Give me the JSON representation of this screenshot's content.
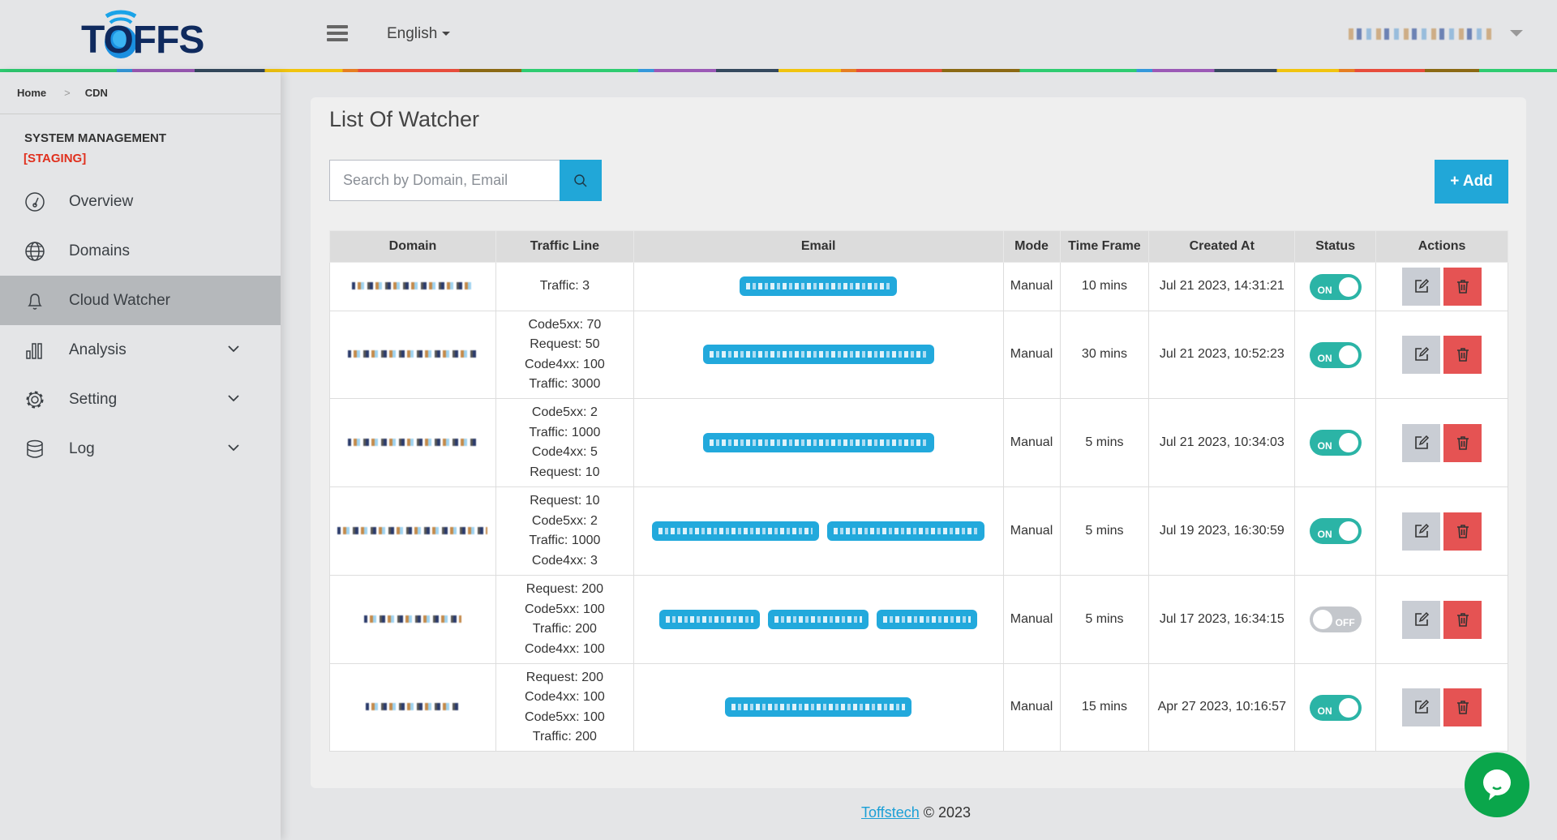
{
  "header": {
    "logo_text": "TOFFS",
    "language": "English"
  },
  "breadcrumb": [
    "Home",
    "CDN"
  ],
  "sidebar": {
    "section": "SYSTEM MANAGEMENT",
    "env": "[STAGING]",
    "items": [
      {
        "label": "Overview",
        "icon": "dashboard-icon"
      },
      {
        "label": "Domains",
        "icon": "globe-icon"
      },
      {
        "label": "Cloud Watcher",
        "icon": "bell-icon",
        "active": true
      },
      {
        "label": "Analysis",
        "icon": "bar-chart-icon",
        "expandable": true
      },
      {
        "label": "Setting",
        "icon": "gear-icon",
        "expandable": true
      },
      {
        "label": "Log",
        "icon": "database-icon",
        "expandable": true
      }
    ]
  },
  "main": {
    "title": "List Of Watcher",
    "search_placeholder": "Search by Domain, Email",
    "add_label": "+ Add",
    "columns": [
      "Domain",
      "Traffic Line",
      "Email",
      "Mode",
      "Time Frame",
      "Created At",
      "Status",
      "Actions"
    ],
    "rows": [
      {
        "traffic": [
          "Traffic: 3"
        ],
        "emails": 1,
        "mode": "Manual",
        "time_frame": "10 mins",
        "created": "Jul 21 2023, 14:31:21",
        "status": "ON"
      },
      {
        "traffic": [
          "Code5xx: 70",
          "Request: 50",
          "Code4xx: 100",
          "Traffic: 3000"
        ],
        "emails": 1,
        "mode": "Manual",
        "time_frame": "30 mins",
        "created": "Jul 21 2023, 10:52:23",
        "status": "ON"
      },
      {
        "traffic": [
          "Code5xx: 2",
          "Traffic: 1000",
          "Code4xx: 5",
          "Request: 10"
        ],
        "emails": 1,
        "mode": "Manual",
        "time_frame": "5 mins",
        "created": "Jul 21 2023, 10:34:03",
        "status": "ON"
      },
      {
        "traffic": [
          "Request: 10",
          "Code5xx: 2",
          "Traffic: 1000",
          "Code4xx: 3"
        ],
        "emails": 2,
        "mode": "Manual",
        "time_frame": "5 mins",
        "created": "Jul 19 2023, 16:30:59",
        "status": "ON"
      },
      {
        "traffic": [
          "Request: 200",
          "Code5xx: 100",
          "Traffic: 200",
          "Code4xx: 100"
        ],
        "emails": 3,
        "mode": "Manual",
        "time_frame": "5 mins",
        "created": "Jul 17 2023, 16:34:15",
        "status": "OFF"
      },
      {
        "traffic": [
          "Request: 200",
          "Code4xx: 100",
          "Code5xx: 100",
          "Traffic: 200"
        ],
        "emails": 1,
        "mode": "Manual",
        "time_frame": "15 mins",
        "created": "Apr 27 2023, 10:16:57",
        "status": "ON"
      }
    ]
  },
  "footer": {
    "link": "Toffstech",
    "text": "© 2023"
  },
  "colors": {
    "accent": "#21a7d8",
    "on": "#2bb4a6",
    "delete": "#e55353",
    "chat": "#0aa64b"
  }
}
